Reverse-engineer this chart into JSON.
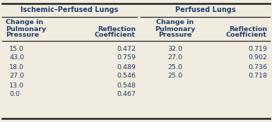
{
  "group1_header": "Ischemic–Perfused Lungs",
  "group2_header": "Perfused Lungs",
  "col1_h1": "Change in",
  "col1_h2": "Pulmonary",
  "col1_h3": "Pressure",
  "col2_h1": "Reflection",
  "col2_h2": "Coefficient",
  "col3_h1": "Change in",
  "col3_h2": "Pulmonary",
  "col3_h3": "Pressure",
  "col4_h1": "Reflection",
  "col4_h2": "Coefficient",
  "ischemic_pressure": [
    "15.0",
    "43.0",
    "18.0",
    "27.0",
    "13.0",
    "0.0"
  ],
  "ischemic_coeff": [
    "0.472",
    "0.759",
    "0.489",
    "0.546",
    "0.548",
    "0.467"
  ],
  "perfused_pressure": [
    "32.0",
    "27.0",
    "25.0",
    "25.0",
    "",
    ""
  ],
  "perfused_coeff": [
    "0.719",
    "0.902",
    "0.736",
    "0.718",
    "",
    ""
  ],
  "header_color": "#243f6e",
  "text_color": "#243f6e",
  "bg_color": "#f0ece0",
  "line_color": "#222222",
  "fig_w": 3.85,
  "fig_h": 1.73,
  "dpi": 100
}
